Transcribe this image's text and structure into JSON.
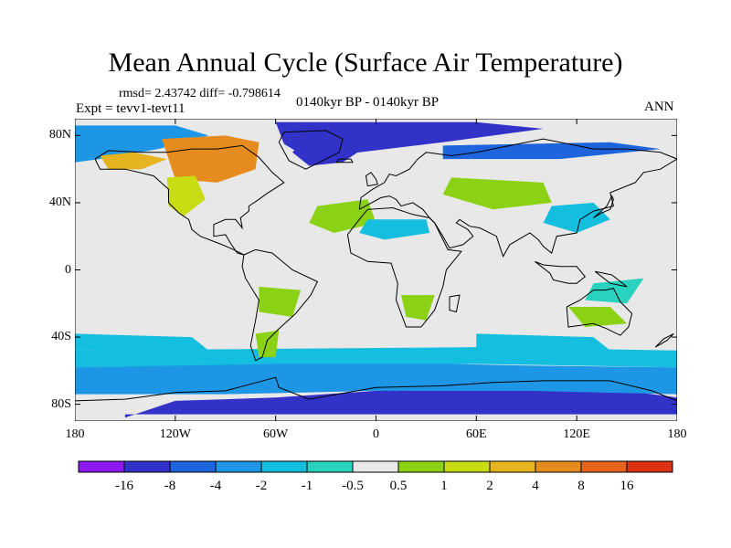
{
  "figure": {
    "title": "Mean Annual Cycle (Surface Air Temperature)",
    "stats": "rmsd= 2.43742 diff= -0.798614",
    "experiment": "Expt = tevv1-tevt11",
    "period": "0140kyr BP - 0140kyr BP",
    "season": "ANN"
  },
  "map": {
    "projection": "cylindrical equidistant",
    "lon_range": [
      -180,
      180
    ],
    "lat_range": [
      -90,
      90
    ],
    "lat_ticks": [
      "80N",
      "40N",
      "0",
      "40S",
      "80S"
    ],
    "lat_tick_values": [
      80,
      40,
      0,
      -40,
      -80
    ],
    "lon_ticks": [
      "180",
      "120W",
      "60W",
      "0",
      "60E",
      "120E",
      "180"
    ],
    "lon_tick_values": [
      -180,
      -120,
      -60,
      0,
      60,
      120,
      180
    ],
    "background_color": "#e8e8e8",
    "coastline_color": "#000000"
  },
  "colorbar": {
    "labels": [
      "-16",
      "-8",
      "-4",
      "-2",
      "-1",
      "-0.5",
      "0.5",
      "1",
      "2",
      "4",
      "8",
      "16"
    ],
    "colors": [
      "#8b19f0",
      "#3232c8",
      "#1e64dc",
      "#1e96e6",
      "#14bede",
      "#28d2be",
      "#e8e8e8",
      "#8cd214",
      "#c8dc14",
      "#e6b41e",
      "#e68c1e",
      "#e6641e",
      "#dc3214"
    ]
  },
  "chart_data": {
    "type": "heatmap",
    "title": "Mean Annual Cycle (Surface Air Temperature)",
    "levels": [
      -16,
      -8,
      -4,
      -2,
      -1,
      -0.5,
      0.5,
      1,
      2,
      4,
      8,
      16
    ],
    "xlabel": "",
    "ylabel": "",
    "xlim": [
      -180,
      180
    ],
    "ylim": [
      -90,
      90
    ],
    "regions": [
      {
        "name": "antarctic-coast-deep",
        "bin": 1,
        "lon": [
          [
            -150,
            -88
          ],
          [
            -120,
            -78
          ],
          [
            -60,
            -76
          ],
          [
            0,
            -72
          ],
          [
            60,
            -69
          ],
          [
            120,
            -68
          ],
          [
            180,
            -76
          ],
          [
            180,
            -86
          ],
          [
            -150,
            -86
          ]
        ]
      },
      {
        "name": "southern-ocean-band",
        "bin": 3,
        "lon": [
          [
            -180,
            -58
          ],
          [
            -90,
            -56
          ],
          [
            0,
            -55
          ],
          [
            90,
            -57
          ],
          [
            180,
            -58
          ],
          [
            180,
            -74
          ],
          [
            90,
            -72
          ],
          [
            0,
            -72
          ],
          [
            -90,
            -74
          ],
          [
            -180,
            -74
          ]
        ]
      },
      {
        "name": "southern-ocean-outer",
        "bin": 4,
        "lon": [
          [
            -180,
            -48
          ],
          [
            -60,
            -47
          ],
          [
            60,
            -46
          ],
          [
            180,
            -48
          ],
          [
            180,
            -58
          ],
          [
            60,
            -56
          ],
          [
            -60,
            -56
          ],
          [
            -180,
            -58
          ]
        ]
      },
      {
        "name": "arctic-deep",
        "bin": 1,
        "lon": [
          [
            -60,
            88
          ],
          [
            60,
            88
          ],
          [
            100,
            84
          ],
          [
            40,
            76
          ],
          [
            -10,
            70
          ],
          [
            -40,
            66
          ],
          [
            -55,
            75
          ]
        ]
      },
      {
        "name": "greenland-sea",
        "bin": 1,
        "lon": [
          [
            -40,
            80
          ],
          [
            -20,
            82
          ],
          [
            -8,
            72
          ],
          [
            -20,
            64
          ],
          [
            -40,
            62
          ],
          [
            -50,
            70
          ]
        ]
      },
      {
        "name": "north-pacific-high",
        "bin": 3,
        "lon": [
          [
            -180,
            86
          ],
          [
            -120,
            86
          ],
          [
            -100,
            80
          ],
          [
            -130,
            72
          ],
          [
            -165,
            66
          ],
          [
            -180,
            64
          ]
        ]
      },
      {
        "name": "canada-warm",
        "bin": 10,
        "lon": [
          [
            -128,
            78
          ],
          [
            -90,
            80
          ],
          [
            -70,
            76
          ],
          [
            -72,
            60
          ],
          [
            -95,
            52
          ],
          [
            -120,
            54
          ]
        ]
      },
      {
        "name": "alaska-warm",
        "bin": 9,
        "lon": [
          [
            -165,
            68
          ],
          [
            -145,
            70
          ],
          [
            -125,
            66
          ],
          [
            -140,
            60
          ],
          [
            -160,
            60
          ]
        ]
      },
      {
        "name": "west-us-warm",
        "bin": 8,
        "lon": [
          [
            -125,
            55
          ],
          [
            -108,
            56
          ],
          [
            -102,
            42
          ],
          [
            -115,
            32
          ],
          [
            -124,
            38
          ]
        ]
      },
      {
        "name": "east-asia-cool",
        "bin": 4,
        "lon": [
          [
            105,
            38
          ],
          [
            130,
            40
          ],
          [
            140,
            30
          ],
          [
            120,
            22
          ],
          [
            100,
            28
          ]
        ]
      },
      {
        "name": "arctic-russia-cold",
        "bin": 2,
        "lon": [
          [
            40,
            74
          ],
          [
            140,
            76
          ],
          [
            170,
            72
          ],
          [
            110,
            66
          ],
          [
            40,
            66
          ]
        ]
      },
      {
        "name": "central-asia-warm",
        "bin": 7,
        "lon": [
          [
            45,
            55
          ],
          [
            100,
            52
          ],
          [
            105,
            40
          ],
          [
            70,
            36
          ],
          [
            40,
            45
          ]
        ]
      },
      {
        "name": "atlantic-subtropic",
        "bin": 7,
        "lon": [
          [
            -35,
            38
          ],
          [
            -5,
            42
          ],
          [
            0,
            28
          ],
          [
            -25,
            22
          ],
          [
            -40,
            28
          ]
        ]
      },
      {
        "name": "sahara-cool",
        "bin": 4,
        "lon": [
          [
            -5,
            30
          ],
          [
            30,
            30
          ],
          [
            32,
            22
          ],
          [
            5,
            18
          ],
          [
            -10,
            22
          ]
        ]
      },
      {
        "name": "australia-warm",
        "bin": 7,
        "lon": [
          [
            115,
            -22
          ],
          [
            140,
            -22
          ],
          [
            150,
            -32
          ],
          [
            125,
            -34
          ]
        ]
      },
      {
        "name": "south-america-warm",
        "bin": 7,
        "lon": [
          [
            -70,
            -10
          ],
          [
            -45,
            -12
          ],
          [
            -50,
            -28
          ],
          [
            -70,
            -25
          ]
        ]
      },
      {
        "name": "patagonia-warm",
        "bin": 7,
        "lon": [
          [
            -72,
            -38
          ],
          [
            -58,
            -36
          ],
          [
            -60,
            -52
          ],
          [
            -70,
            -52
          ]
        ]
      },
      {
        "name": "south-africa-warm",
        "bin": 7,
        "lon": [
          [
            15,
            -15
          ],
          [
            35,
            -15
          ],
          [
            30,
            -30
          ],
          [
            18,
            -28
          ]
        ]
      },
      {
        "name": "pacific-south-cool",
        "bin": 4,
        "lon": [
          [
            -180,
            -38
          ],
          [
            -110,
            -40
          ],
          [
            -100,
            -48
          ],
          [
            -180,
            -48
          ]
        ]
      },
      {
        "name": "indian-south-cool",
        "bin": 4,
        "lon": [
          [
            60,
            -38
          ],
          [
            130,
            -40
          ],
          [
            140,
            -48
          ],
          [
            60,
            -48
          ]
        ]
      },
      {
        "name": "west-pacific-equator",
        "bin": 5,
        "lon": [
          [
            130,
            -8
          ],
          [
            160,
            -5
          ],
          [
            150,
            -20
          ],
          [
            125,
            -18
          ]
        ]
      }
    ]
  }
}
